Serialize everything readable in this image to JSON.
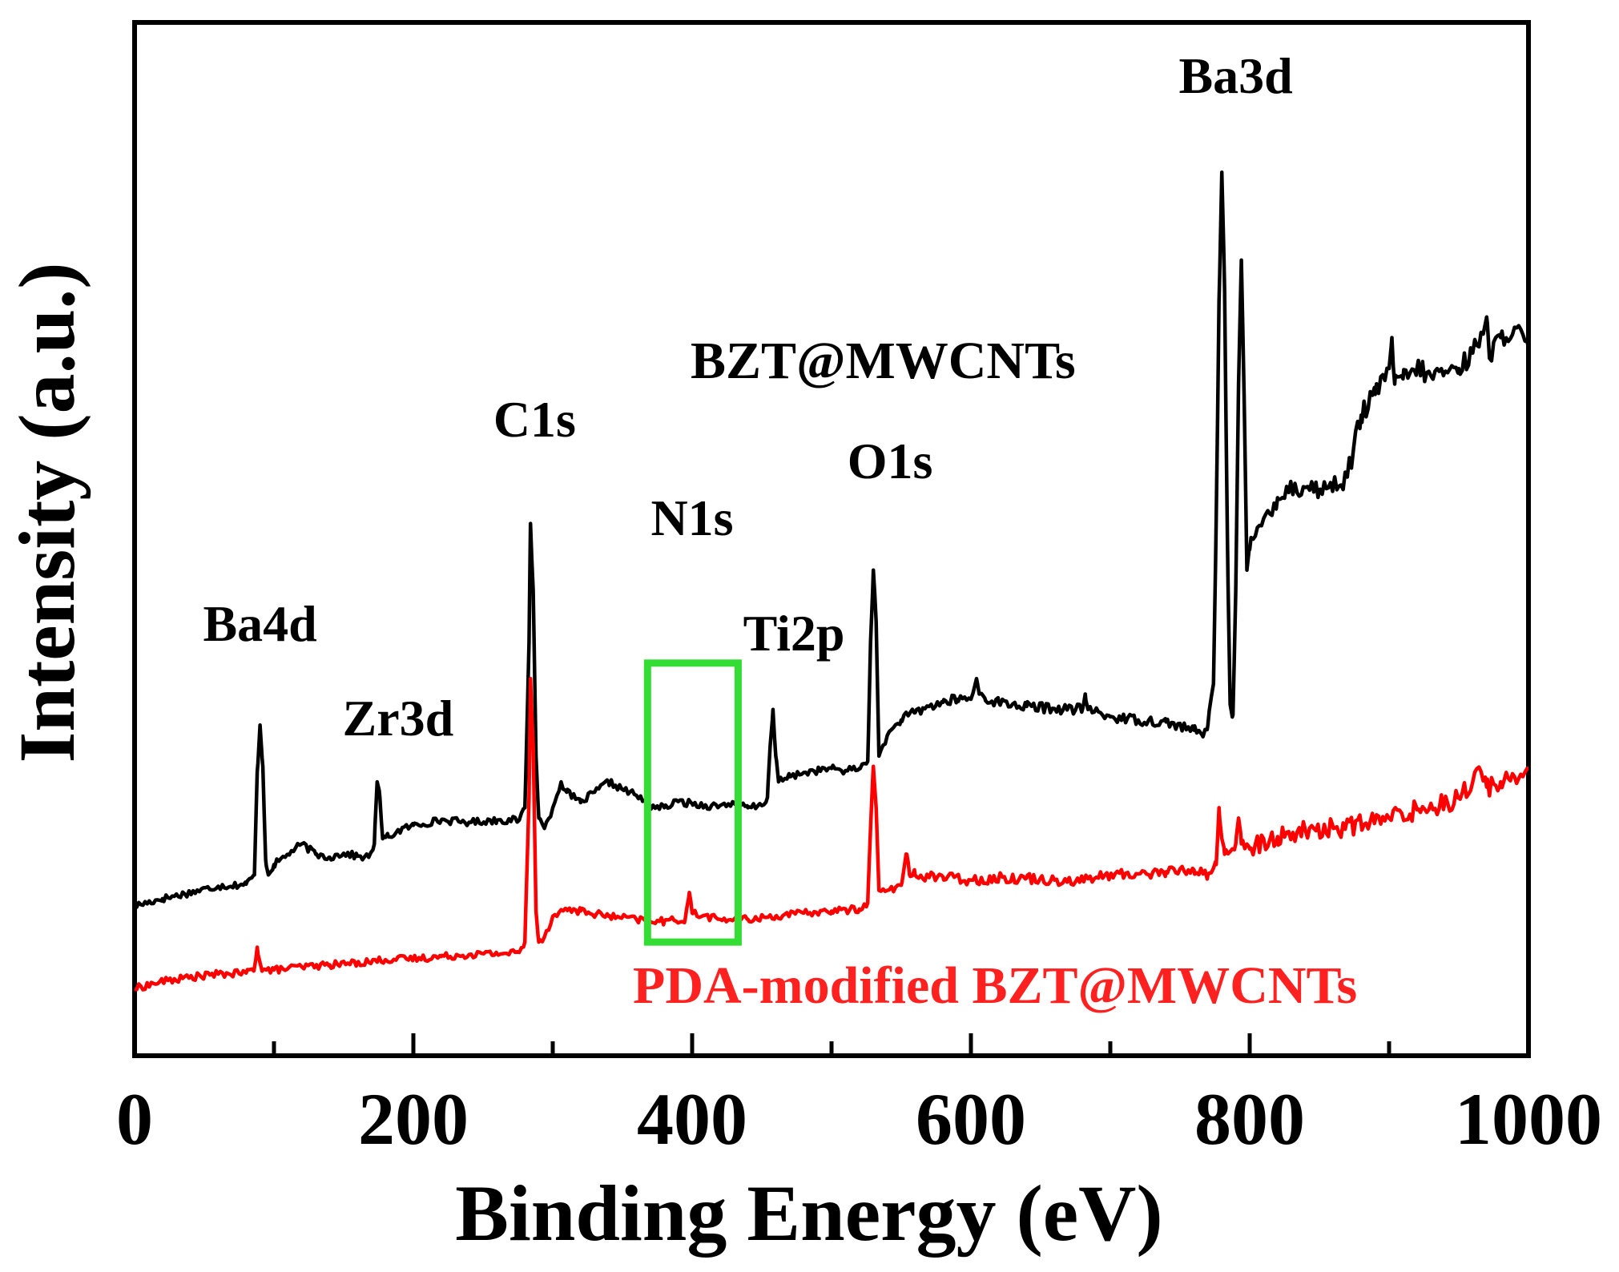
{
  "chart_data": {
    "type": "line",
    "title": "",
    "xlabel": "Binding Energy (eV)",
    "ylabel": "Intensity (a.u.)",
    "xlim": [
      0,
      1000
    ],
    "ylim": [
      0,
      100
    ],
    "x_ticks": [
      0,
      200,
      400,
      600,
      800,
      1000
    ],
    "x_tick_labels": [
      "0",
      "200",
      "400",
      "600",
      "800",
      "1000"
    ],
    "x_minor_ticks": [
      100,
      300,
      500,
      700,
      900
    ],
    "y_ticks_shown": false,
    "grid": false,
    "series": [
      {
        "name": "BZT@MWCNTs",
        "color": "#000000",
        "label_color": "#000000",
        "points": [
          [
            0,
            14.5
          ],
          [
            20,
            15.2
          ],
          [
            40,
            15.8
          ],
          [
            60,
            16.4
          ],
          [
            80,
            16.6
          ],
          [
            86,
            17.5
          ],
          [
            88,
            27.5
          ],
          [
            90,
            32
          ],
          [
            92,
            28
          ],
          [
            94,
            19
          ],
          [
            96,
            17.5
          ],
          [
            100,
            18.5
          ],
          [
            110,
            19.5
          ],
          [
            120,
            20.5
          ],
          [
            130,
            19.5
          ],
          [
            140,
            19.2
          ],
          [
            150,
            19.6
          ],
          [
            160,
            19.3
          ],
          [
            168,
            19.2
          ],
          [
            172,
            20.5
          ],
          [
            174,
            26.5
          ],
          [
            176,
            25
          ],
          [
            178,
            21
          ],
          [
            182,
            21.2
          ],
          [
            190,
            21.8
          ],
          [
            200,
            22.3
          ],
          [
            220,
            22.8
          ],
          [
            240,
            22.6
          ],
          [
            260,
            22.8
          ],
          [
            276,
            22.8
          ],
          [
            280,
            24
          ],
          [
            283,
            40
          ],
          [
            284,
            51.5
          ],
          [
            286,
            45
          ],
          [
            288,
            29
          ],
          [
            290,
            23
          ],
          [
            294,
            22
          ],
          [
            300,
            24
          ],
          [
            306,
            26.5
          ],
          [
            310,
            25.5
          ],
          [
            320,
            24.5
          ],
          [
            330,
            25.5
          ],
          [
            340,
            26.5
          ],
          [
            350,
            25.8
          ],
          [
            360,
            25.2
          ],
          [
            370,
            24.2
          ],
          [
            380,
            24
          ],
          [
            390,
            24.6
          ],
          [
            400,
            24.4
          ],
          [
            410,
            24.2
          ],
          [
            420,
            24.2
          ],
          [
            430,
            24.5
          ],
          [
            440,
            24
          ],
          [
            450,
            24.2
          ],
          [
            454,
            25
          ],
          [
            456,
            30
          ],
          [
            458,
            33.5
          ],
          [
            460,
            29
          ],
          [
            462,
            26.5
          ],
          [
            470,
            27
          ],
          [
            480,
            27.4
          ],
          [
            490,
            27.6
          ],
          [
            500,
            27.8
          ],
          [
            510,
            27.6
          ],
          [
            520,
            27.8
          ],
          [
            526,
            28.5
          ],
          [
            528,
            40
          ],
          [
            530,
            47
          ],
          [
            532,
            42
          ],
          [
            534,
            29
          ],
          [
            540,
            31
          ],
          [
            550,
            32.5
          ],
          [
            560,
            33.2
          ],
          [
            570,
            33.8
          ],
          [
            580,
            34.2
          ],
          [
            590,
            34.5
          ],
          [
            600,
            34.5
          ],
          [
            604,
            36.5
          ],
          [
            606,
            35
          ],
          [
            610,
            34.6
          ],
          [
            620,
            34.2
          ],
          [
            640,
            33.8
          ],
          [
            660,
            33.6
          ],
          [
            680,
            33.5
          ],
          [
            682,
            35
          ],
          [
            684,
            33.5
          ],
          [
            700,
            32.8
          ],
          [
            720,
            32.5
          ],
          [
            740,
            32.3
          ],
          [
            760,
            31.5
          ],
          [
            766,
            31
          ],
          [
            770,
            32
          ],
          [
            774,
            36
          ],
          [
            776,
            52
          ],
          [
            778,
            73
          ],
          [
            780,
            85.5
          ],
          [
            782,
            74
          ],
          [
            784,
            50
          ],
          [
            786,
            34
          ],
          [
            788,
            33
          ],
          [
            790,
            45
          ],
          [
            792,
            65
          ],
          [
            794,
            77
          ],
          [
            796,
            64
          ],
          [
            798,
            47
          ],
          [
            800,
            49
          ],
          [
            810,
            52
          ],
          [
            820,
            54
          ],
          [
            830,
            55
          ],
          [
            840,
            55
          ],
          [
            850,
            54.8
          ],
          [
            860,
            55.2
          ],
          [
            870,
            56
          ],
          [
            880,
            62
          ],
          [
            890,
            64
          ],
          [
            900,
            66.5
          ],
          [
            902,
            69.5
          ],
          [
            904,
            65
          ],
          [
            910,
            65.5
          ],
          [
            920,
            66.5
          ],
          [
            930,
            65.8
          ],
          [
            940,
            66.2
          ],
          [
            950,
            66.5
          ],
          [
            960,
            68
          ],
          [
            966,
            70
          ],
          [
            970,
            71.5
          ],
          [
            972,
            67.5
          ],
          [
            980,
            69.5
          ],
          [
            990,
            70.5
          ],
          [
            1000,
            68.5
          ]
        ]
      },
      {
        "name": "PDA-modified BZT@MWCNTs",
        "color": "#ff0000",
        "label_color": "#ff2020",
        "points": [
          [
            0,
            6.5
          ],
          [
            20,
            7.2
          ],
          [
            40,
            7.6
          ],
          [
            60,
            7.9
          ],
          [
            80,
            8
          ],
          [
            86,
            8.5
          ],
          [
            88,
            10.5
          ],
          [
            90,
            9
          ],
          [
            92,
            8.3
          ],
          [
            100,
            8.3
          ],
          [
            120,
            8.6
          ],
          [
            140,
            8.8
          ],
          [
            160,
            9
          ],
          [
            180,
            9.3
          ],
          [
            200,
            9.4
          ],
          [
            220,
            9.6
          ],
          [
            240,
            9.8
          ],
          [
            260,
            9.9
          ],
          [
            276,
            10
          ],
          [
            280,
            11
          ],
          [
            283,
            25
          ],
          [
            284,
            36.5
          ],
          [
            286,
            30
          ],
          [
            288,
            14
          ],
          [
            290,
            11
          ],
          [
            294,
            11.5
          ],
          [
            300,
            13.5
          ],
          [
            310,
            14.2
          ],
          [
            320,
            14
          ],
          [
            340,
            13.5
          ],
          [
            360,
            13.2
          ],
          [
            380,
            13
          ],
          [
            395,
            13.2
          ],
          [
            398,
            15.8
          ],
          [
            400,
            13.8
          ],
          [
            420,
            13.2
          ],
          [
            440,
            13.2
          ],
          [
            460,
            13.5
          ],
          [
            480,
            13.8
          ],
          [
            500,
            14
          ],
          [
            520,
            14.2
          ],
          [
            526,
            14.8
          ],
          [
            528,
            22
          ],
          [
            530,
            28
          ],
          [
            532,
            24
          ],
          [
            534,
            16
          ],
          [
            540,
            16
          ],
          [
            550,
            16.5
          ],
          [
            554,
            19.5
          ],
          [
            556,
            17.5
          ],
          [
            560,
            17.5
          ],
          [
            580,
            17.3
          ],
          [
            600,
            17
          ],
          [
            620,
            17.2
          ],
          [
            640,
            17.2
          ],
          [
            660,
            17
          ],
          [
            680,
            17
          ],
          [
            700,
            17.5
          ],
          [
            720,
            17.6
          ],
          [
            740,
            17.8
          ],
          [
            760,
            18
          ],
          [
            770,
            17.5
          ],
          [
            776,
            18.5
          ],
          [
            778,
            24
          ],
          [
            780,
            21
          ],
          [
            782,
            19.5
          ],
          [
            790,
            20.5
          ],
          [
            792,
            23
          ],
          [
            794,
            20.5
          ],
          [
            800,
            20
          ],
          [
            820,
            21.2
          ],
          [
            840,
            21.8
          ],
          [
            860,
            22
          ],
          [
            880,
            22.4
          ],
          [
            900,
            23
          ],
          [
            920,
            23.8
          ],
          [
            940,
            24.5
          ],
          [
            950,
            25
          ],
          [
            960,
            26.5
          ],
          [
            966,
            27.5
          ],
          [
            970,
            26
          ],
          [
            980,
            26.5
          ],
          [
            990,
            27
          ],
          [
            1000,
            27.8
          ]
        ]
      }
    ],
    "peak_annotations": [
      {
        "label": "Ba4d",
        "x": 90
      },
      {
        "label": "Zr3d",
        "x": 189
      },
      {
        "label": "C1s",
        "x": 287
      },
      {
        "label": "N1s",
        "x": 400
      },
      {
        "label": "Ti2p",
        "x": 473
      },
      {
        "label": "O1s",
        "x": 542
      },
      {
        "label": "Ba3d",
        "x": 790
      }
    ],
    "series_labels": [
      {
        "text": "BZT@MWCNTs",
        "series": 0
      },
      {
        "text": "PDA-modified BZT@MWCNTs",
        "series": 1
      }
    ],
    "highlight_box": {
      "x_range": [
        368,
        433
      ],
      "y_range": [
        11,
        38
      ],
      "color": "#33dd33",
      "meaning": "N1s region"
    }
  }
}
